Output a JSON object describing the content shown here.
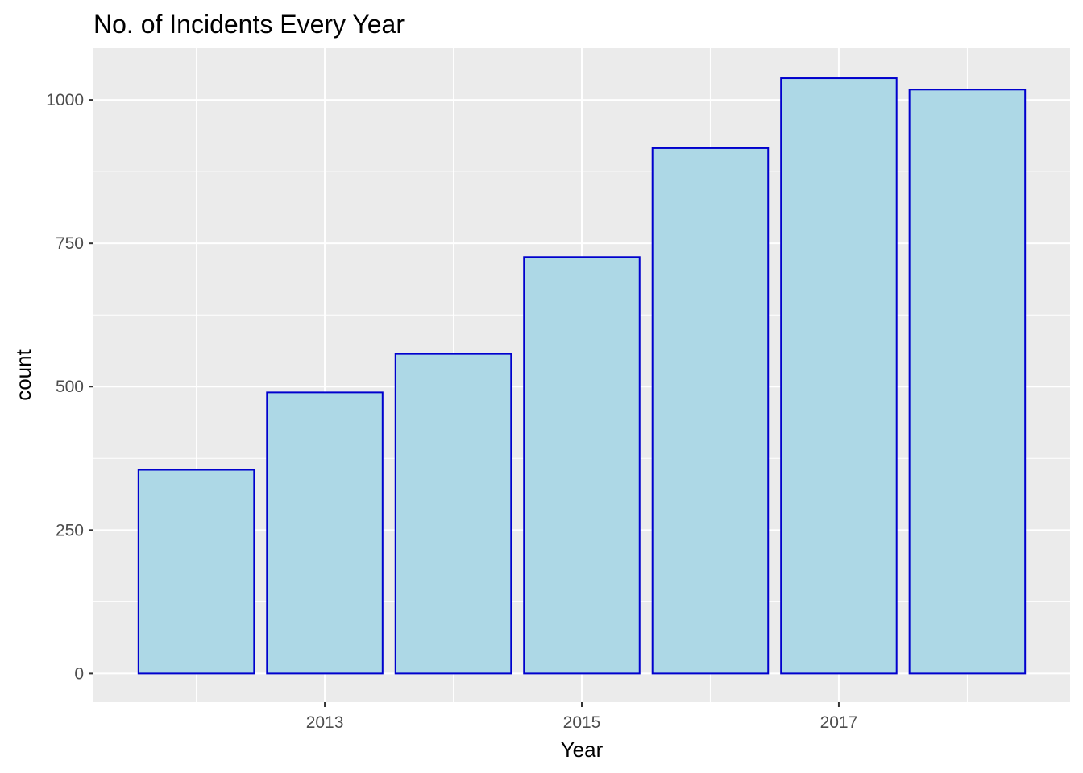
{
  "chart_data": {
    "type": "bar",
    "title": "No. of Incidents Every Year",
    "xlabel": "Year",
    "ylabel": "count",
    "categories": [
      2012,
      2013,
      2014,
      2015,
      2016,
      2017,
      2018
    ],
    "values": [
      355,
      490,
      557,
      726,
      916,
      1038,
      1018
    ],
    "x_ticks": [
      2013,
      2015,
      2017
    ],
    "y_ticks": [
      0,
      250,
      500,
      750,
      1000
    ],
    "xlim": [
      2011.2,
      2018.8
    ],
    "ylim": [
      -50,
      1090
    ],
    "grid": true,
    "legend": "none",
    "colors": {
      "panel_background": "#ebebeb",
      "grid_line": "#ffffff",
      "bar_fill": "#add8e6",
      "bar_outline": "#0000cd",
      "tick_color": "#333333"
    }
  }
}
